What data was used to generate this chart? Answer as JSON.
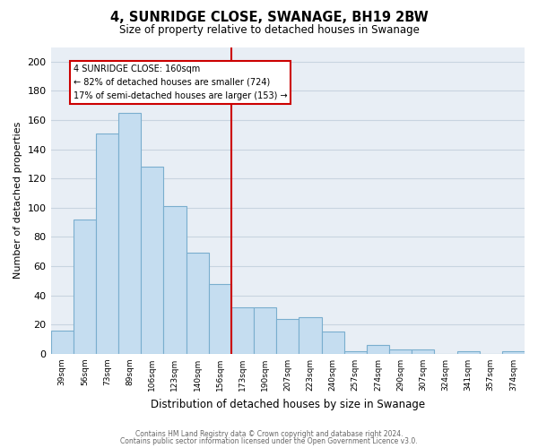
{
  "title": "4, SUNRIDGE CLOSE, SWANAGE, BH19 2BW",
  "subtitle": "Size of property relative to detached houses in Swanage",
  "xlabel": "Distribution of detached houses by size in Swanage",
  "ylabel": "Number of detached properties",
  "bar_labels": [
    "39sqm",
    "56sqm",
    "73sqm",
    "89sqm",
    "106sqm",
    "123sqm",
    "140sqm",
    "156sqm",
    "173sqm",
    "190sqm",
    "207sqm",
    "223sqm",
    "240sqm",
    "257sqm",
    "274sqm",
    "290sqm",
    "307sqm",
    "324sqm",
    "341sqm",
    "357sqm",
    "374sqm"
  ],
  "bar_values": [
    16,
    92,
    151,
    165,
    128,
    101,
    69,
    48,
    32,
    32,
    24,
    25,
    15,
    2,
    6,
    3,
    3,
    0,
    2,
    0,
    2
  ],
  "bar_color": "#c5ddf0",
  "bar_edge_color": "#7aaece",
  "vline_x_index": 7,
  "vline_color": "#cc0000",
  "annotation_title": "4 SUNRIDGE CLOSE: 160sqm",
  "annotation_line1": "← 82% of detached houses are smaller (724)",
  "annotation_line2": "17% of semi-detached houses are larger (153) →",
  "annotation_box_edge": "#cc0000",
  "ylim": [
    0,
    210
  ],
  "yticks": [
    0,
    20,
    40,
    60,
    80,
    100,
    120,
    140,
    160,
    180,
    200
  ],
  "footer_line1": "Contains HM Land Registry data © Crown copyright and database right 2024.",
  "footer_line2": "Contains public sector information licensed under the Open Government Licence v3.0.",
  "bg_color": "#e8eef5",
  "grid_color": "#c8d4e0"
}
